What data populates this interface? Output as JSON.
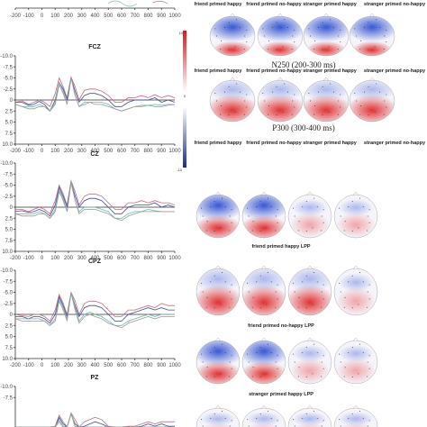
{
  "figure": {
    "line_colors": {
      "friend_happy": "#c46a7a",
      "friend_nohappy": "#3d4e9c",
      "stranger_happy": "#6fb8b0",
      "stranger_nohappy": "#999999"
    },
    "topo_colors": {
      "negative": "#3050c8",
      "positive": "#e03030"
    },
    "colorbar_top": {
      "min_label": "0",
      "max_label": "10"
    },
    "colorbar_bottom": {
      "min_label": "-10"
    },
    "panels": [
      {
        "title": "",
        "x_ticks": [
          "-200",
          "-100",
          "0",
          "100",
          "200",
          "300",
          "400",
          "500",
          "600",
          "700",
          "800",
          "900",
          "1000"
        ],
        "y_ticks": []
      },
      {
        "title": "FCZ",
        "x_ticks": [
          "-200",
          "-100",
          "0",
          "100",
          "200",
          "300",
          "400",
          "500",
          "600",
          "700",
          "800",
          "900",
          "1000"
        ],
        "y_ticks": [
          "-10.0",
          "-7.5",
          "-5.0",
          "-2.5",
          "0",
          "2.5",
          "5.0",
          "7.5",
          "10.0"
        ]
      },
      {
        "title": "CZ",
        "x_ticks": [
          "-200",
          "-100",
          "0",
          "100",
          "200",
          "300",
          "400",
          "500",
          "600",
          "700",
          "800",
          "900",
          "1000"
        ],
        "y_ticks": [
          "-10.0",
          "-7.5",
          "-5.0",
          "-2.5",
          "0",
          "2.5",
          "5.0",
          "7.5",
          "10.0"
        ]
      },
      {
        "title": "CPZ",
        "x_ticks": [
          "-200",
          "-100",
          "0",
          "100",
          "200",
          "300",
          "400",
          "500",
          "600",
          "700",
          "800",
          "900",
          "1000"
        ],
        "y_ticks": [
          "-10.0",
          "-7.5",
          "-5.0",
          "-2.5",
          "0",
          "2.5",
          "5.0",
          "7.5",
          "10.0"
        ]
      },
      {
        "title": "PZ",
        "x_ticks": [],
        "y_ticks": [
          "-10.0",
          "-7.5"
        ]
      }
    ],
    "topo_rows": [
      {
        "labels": [
          "friend primed happy",
          "friend primed no-happy",
          "stranger primed happy",
          "stranger primed no-happy"
        ],
        "caption": "N250 (200-300 ms)"
      },
      {
        "labels": [
          "friend primed happy",
          "friend primed no-happy",
          "stranger primed happy",
          "stranger primed no-happy"
        ],
        "caption": "P300 (300-400 ms)"
      }
    ],
    "lpp_captions": [
      "friend primed happy LPP",
      "friend primed no-happy LPP",
      "stranger primed happy LPP"
    ]
  },
  "chart_data": [
    {
      "type": "line",
      "title": "FCZ",
      "xlim": [
        -200,
        1000
      ],
      "ylim": [
        10,
        -10
      ],
      "x": [
        -200,
        -150,
        -100,
        -60,
        -20,
        20,
        60,
        100,
        130,
        160,
        190,
        220,
        250,
        280,
        320,
        360,
        400,
        450,
        500,
        550,
        600,
        650,
        700,
        750,
        800,
        850,
        900,
        950,
        1000
      ],
      "series": [
        {
          "values": [
            0.5,
            0.2,
            1,
            0.5,
            0,
            0.5,
            1.5,
            -1.5,
            -5,
            -3,
            -0.5,
            -5.2,
            -3,
            0,
            -2.2,
            -2.5,
            -2.5,
            -2,
            -1,
            0.5,
            0.5,
            -0.5,
            -0.5,
            -1,
            -0.5,
            -1.2,
            -0.5,
            -1,
            -0.5
          ]
        },
        {
          "values": [
            0.5,
            0.5,
            1.2,
            1,
            0.3,
            1,
            2.5,
            0,
            -4,
            -2.5,
            0,
            -5,
            -2,
            0.5,
            -1,
            -1.5,
            -1.5,
            -1,
            0,
            1.5,
            1.5,
            0.5,
            0,
            0,
            0,
            -0.5,
            0.5,
            0,
            0.5
          ]
        },
        {
          "values": [
            1,
            1.5,
            1.5,
            1.5,
            1,
            1.5,
            2.5,
            0.5,
            -4,
            -2,
            1,
            -5.2,
            -1,
            1.5,
            0.5,
            0.5,
            0.5,
            0.5,
            1,
            2,
            2.5,
            2,
            1.5,
            1.2,
            1.2,
            1,
            1.2,
            1,
            1
          ]
        },
        {
          "values": [
            1,
            1.5,
            2,
            2,
            1.5,
            1.5,
            2.5,
            1,
            -3.5,
            -1.5,
            1,
            -5,
            -1,
            1.5,
            1,
            0.5,
            1,
            1,
            1.5,
            2,
            2.5,
            2,
            1.5,
            1.5,
            1.2,
            1.5,
            1.5,
            1.2,
            1
          ]
        }
      ]
    },
    {
      "type": "line",
      "title": "CZ",
      "xlim": [
        -200,
        1000
      ],
      "ylim": [
        10,
        -10
      ],
      "x": [
        -200,
        -150,
        -100,
        -60,
        -20,
        20,
        60,
        100,
        130,
        160,
        190,
        220,
        250,
        280,
        320,
        360,
        400,
        450,
        500,
        550,
        600,
        650,
        700,
        750,
        800,
        850,
        900,
        950,
        1000
      ],
      "series": [
        {
          "values": [
            0.5,
            0.5,
            1,
            0.5,
            0,
            0.5,
            1.5,
            -1.5,
            -5,
            -3,
            -0.5,
            -6,
            -3.5,
            -0.5,
            -2.5,
            -3,
            -3,
            -2.5,
            -1,
            0.5,
            0.5,
            -1,
            -1,
            -1.5,
            -1,
            -1.5,
            -1,
            -1,
            -0.5
          ]
        },
        {
          "values": [
            1,
            0.8,
            1.2,
            1,
            0.5,
            1,
            2,
            -0.5,
            -4.5,
            -2.5,
            0,
            -5.8,
            -2.5,
            0,
            -1.5,
            -2,
            -2,
            -1.5,
            0,
            1.5,
            1.5,
            0,
            -0.5,
            -0.5,
            -0.5,
            -1,
            0,
            -0.5,
            0
          ]
        },
        {
          "values": [
            1.5,
            1.5,
            1.5,
            1.5,
            1,
            1.5,
            2.5,
            0.5,
            -4,
            -2,
            1,
            -6,
            -1.5,
            1,
            0,
            0,
            0,
            0.5,
            1,
            2.5,
            2.5,
            1.5,
            1,
            1,
            0.5,
            0.8,
            1,
            1,
            1
          ]
        },
        {
          "values": [
            1.5,
            2,
            2,
            2,
            1.5,
            1.5,
            2.5,
            1,
            -3.5,
            -1.5,
            1,
            -5.5,
            -1.5,
            1.5,
            0.5,
            0.5,
            0.5,
            1,
            1.5,
            2.5,
            3,
            2,
            1.5,
            1,
            1,
            1,
            1,
            1,
            1
          ]
        }
      ]
    },
    {
      "type": "line",
      "title": "CPZ",
      "xlim": [
        -200,
        1000
      ],
      "ylim": [
        10,
        -10
      ],
      "x": [
        -200,
        -150,
        -100,
        -60,
        -20,
        20,
        60,
        100,
        130,
        160,
        190,
        220,
        250,
        280,
        320,
        360,
        400,
        450,
        500,
        550,
        600,
        650,
        700,
        750,
        800,
        850,
        900,
        950,
        1000
      ],
      "series": [
        {
          "values": [
            0,
            0.3,
            0.5,
            0,
            0,
            0.5,
            1.5,
            -1,
            -4.5,
            -2.5,
            0,
            -5,
            -3,
            0,
            -2.5,
            -3,
            -3,
            -2.5,
            -1,
            0.5,
            0.5,
            -1,
            -1,
            -1.5,
            -2,
            -1.5,
            -2.5,
            -2,
            -2
          ]
        },
        {
          "values": [
            0.5,
            0.5,
            1,
            0.5,
            0.5,
            1,
            2,
            0,
            -4,
            -2,
            0.5,
            -4.8,
            -2,
            0.5,
            -1.5,
            -2,
            -2,
            -1.5,
            0,
            1.5,
            1.5,
            0,
            -0.5,
            -1,
            -1.5,
            -1,
            -1.5,
            -1,
            -1
          ]
        },
        {
          "values": [
            1,
            1,
            1,
            1,
            1,
            1.5,
            2.5,
            1,
            -3.5,
            -1.5,
            1,
            -5,
            -1.5,
            1.5,
            0,
            -0.5,
            0,
            0.5,
            1.5,
            2.5,
            2.5,
            1.5,
            1,
            0.5,
            0,
            0.5,
            0,
            0,
            0
          ]
        },
        {
          "values": [
            1,
            1.5,
            1.5,
            1.5,
            1.5,
            1.5,
            2.5,
            1.5,
            -3,
            -1,
            1.5,
            -4.8,
            -1,
            2,
            0.5,
            0,
            0.5,
            1,
            2,
            2.5,
            3,
            2,
            1.5,
            1,
            0.5,
            1,
            0.5,
            0.5,
            0.5
          ]
        }
      ]
    },
    {
      "type": "line",
      "title": "PZ",
      "xlim": [
        -200,
        1000
      ],
      "ylim": [
        10,
        -10
      ],
      "x": [
        -200,
        -150,
        -100,
        -60,
        -20,
        20,
        60,
        100,
        130,
        160,
        190,
        220,
        250,
        280,
        320,
        360,
        400,
        450,
        500,
        550,
        600,
        650,
        700,
        750,
        800,
        850,
        900,
        950,
        1000
      ],
      "series": [
        {
          "values": [
            0,
            0,
            0.5,
            0,
            0,
            0.5,
            1,
            -1,
            -3.5,
            -2,
            0,
            -4,
            -2.5,
            0,
            -2,
            -2.5,
            -3,
            -2.5,
            -1,
            0.5,
            0.5,
            -1,
            -1,
            -1.5,
            -2,
            -1.5,
            -2,
            -2,
            -2
          ]
        },
        {
          "values": [
            0.5,
            0.5,
            1,
            0.5,
            0.5,
            1,
            1.5,
            0,
            -3,
            -1.5,
            0.5,
            -3.8,
            -1.5,
            0.5,
            -1,
            -1.5,
            -2,
            -1.5,
            0,
            1,
            1,
            0,
            -0.5,
            -1,
            -1.5,
            -1,
            -1.5,
            -1,
            -1
          ]
        },
        {
          "values": [
            1,
            1,
            1,
            1,
            1,
            1.5,
            2,
            0.5,
            -2.5,
            -1,
            1,
            -4,
            -1,
            1,
            0,
            -0.5,
            -0.5,
            0,
            1,
            2,
            2,
            1,
            0.5,
            0,
            -0.5,
            0,
            -0.5,
            -0.5,
            -0.5
          ]
        },
        {
          "values": [
            1,
            1.5,
            1.5,
            1.5,
            1.5,
            1.5,
            2,
            1,
            -2,
            -0.5,
            1.5,
            -3.8,
            -0.5,
            1.5,
            0.5,
            0,
            0,
            0.5,
            1.5,
            2,
            2.5,
            1.5,
            1,
            0.5,
            0,
            0.5,
            0,
            0,
            0
          ]
        }
      ]
    }
  ]
}
